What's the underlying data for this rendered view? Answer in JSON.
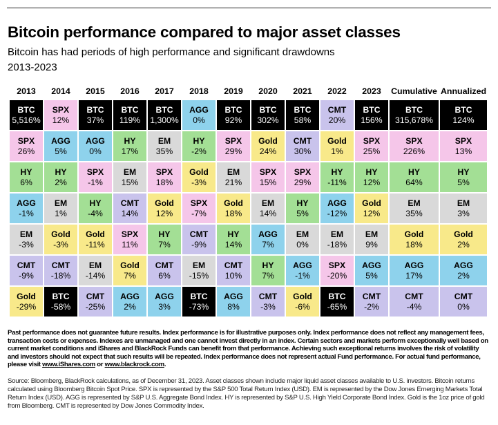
{
  "header": {
    "title": "Bitcoin performance compared to major asset classes",
    "subtitle": "Bitcoin has had periods of high performance and significant drawdowns",
    "period": "2013-2023"
  },
  "colors": {
    "BTC": "#000000",
    "SPX": "#f5c6e9",
    "AGG": "#8ed2ec",
    "HY": "#a3df95",
    "EM": "#d9d9d9",
    "Gold": "#f8e98a",
    "CMT": "#c9c3ec",
    "header_bg": "#ffffff"
  },
  "chart_data": {
    "type": "table",
    "title": "Bitcoin performance compared to major asset classes",
    "subtitle": "Bitcoin has had periods of high performance and significant drawdowns",
    "period": "2013-2023",
    "columns": [
      "2013",
      "2014",
      "2015",
      "2016",
      "2017",
      "2018",
      "2019",
      "2020",
      "2021",
      "2022",
      "2023",
      "Cumulative",
      "Annualized"
    ],
    "rows": [
      [
        {
          "asset": "BTC",
          "value": "5,516%"
        },
        {
          "asset": "SPX",
          "value": "12%"
        },
        {
          "asset": "BTC",
          "value": "37%"
        },
        {
          "asset": "BTC",
          "value": "119%"
        },
        {
          "asset": "BTC",
          "value": "1,300%"
        },
        {
          "asset": "AGG",
          "value": "0%"
        },
        {
          "asset": "BTC",
          "value": "92%"
        },
        {
          "asset": "BTC",
          "value": "302%"
        },
        {
          "asset": "BTC",
          "value": "58%"
        },
        {
          "asset": "CMT",
          "value": "20%"
        },
        {
          "asset": "BTC",
          "value": "156%"
        },
        {
          "asset": "BTC",
          "value": "315,678%"
        },
        {
          "asset": "BTC",
          "value": "124%"
        }
      ],
      [
        {
          "asset": "SPX",
          "value": "26%"
        },
        {
          "asset": "AGG",
          "value": "5%"
        },
        {
          "asset": "AGG",
          "value": "0%"
        },
        {
          "asset": "HY",
          "value": "17%"
        },
        {
          "asset": "EM",
          "value": "35%"
        },
        {
          "asset": "HY",
          "value": "-2%"
        },
        {
          "asset": "SPX",
          "value": "29%"
        },
        {
          "asset": "Gold",
          "value": "24%"
        },
        {
          "asset": "CMT",
          "value": "30%"
        },
        {
          "asset": "Gold",
          "value": "1%"
        },
        {
          "asset": "SPX",
          "value": "25%"
        },
        {
          "asset": "SPX",
          "value": "226%"
        },
        {
          "asset": "SPX",
          "value": "13%"
        }
      ],
      [
        {
          "asset": "HY",
          "value": "6%"
        },
        {
          "asset": "HY",
          "value": "2%"
        },
        {
          "asset": "SPX",
          "value": "-1%"
        },
        {
          "asset": "EM",
          "value": "15%"
        },
        {
          "asset": "SPX",
          "value": "18%"
        },
        {
          "asset": "Gold",
          "value": "-3%"
        },
        {
          "asset": "EM",
          "value": "21%"
        },
        {
          "asset": "SPX",
          "value": "15%"
        },
        {
          "asset": "SPX",
          "value": "29%"
        },
        {
          "asset": "HY",
          "value": "-11%"
        },
        {
          "asset": "HY",
          "value": "12%"
        },
        {
          "asset": "HY",
          "value": "64%"
        },
        {
          "asset": "HY",
          "value": "5%"
        }
      ],
      [
        {
          "asset": "AGG",
          "value": "-1%"
        },
        {
          "asset": "EM",
          "value": "1%"
        },
        {
          "asset": "HY",
          "value": "-4%"
        },
        {
          "asset": "CMT",
          "value": "14%"
        },
        {
          "asset": "Gold",
          "value": "12%"
        },
        {
          "asset": "SPX",
          "value": "-7%"
        },
        {
          "asset": "Gold",
          "value": "18%"
        },
        {
          "asset": "EM",
          "value": "14%"
        },
        {
          "asset": "HY",
          "value": "5%"
        },
        {
          "asset": "AGG",
          "value": "-12%"
        },
        {
          "asset": "Gold",
          "value": "12%"
        },
        {
          "asset": "EM",
          "value": "35%"
        },
        {
          "asset": "EM",
          "value": "3%"
        }
      ],
      [
        {
          "asset": "EM",
          "value": "-3%"
        },
        {
          "asset": "Gold",
          "value": "-3%"
        },
        {
          "asset": "Gold",
          "value": "-11%"
        },
        {
          "asset": "SPX",
          "value": "11%"
        },
        {
          "asset": "HY",
          "value": "7%"
        },
        {
          "asset": "CMT",
          "value": "-9%"
        },
        {
          "asset": "HY",
          "value": "14%"
        },
        {
          "asset": "AGG",
          "value": "7%"
        },
        {
          "asset": "EM",
          "value": "0%"
        },
        {
          "asset": "EM",
          "value": "-18%"
        },
        {
          "asset": "EM",
          "value": "9%"
        },
        {
          "asset": "Gold",
          "value": "18%"
        },
        {
          "asset": "Gold",
          "value": "2%"
        }
      ],
      [
        {
          "asset": "CMT",
          "value": "-9%"
        },
        {
          "asset": "CMT",
          "value": "-18%"
        },
        {
          "asset": "EM",
          "value": "-14%"
        },
        {
          "asset": "Gold",
          "value": "7%"
        },
        {
          "asset": "CMT",
          "value": "6%"
        },
        {
          "asset": "EM",
          "value": "-15%"
        },
        {
          "asset": "CMT",
          "value": "10%"
        },
        {
          "asset": "HY",
          "value": "7%"
        },
        {
          "asset": "AGG",
          "value": "-1%"
        },
        {
          "asset": "SPX",
          "value": "-20%"
        },
        {
          "asset": "AGG",
          "value": "5%"
        },
        {
          "asset": "AGG",
          "value": "17%"
        },
        {
          "asset": "AGG",
          "value": "2%"
        }
      ],
      [
        {
          "asset": "Gold",
          "value": "-29%"
        },
        {
          "asset": "BTC",
          "value": "-58%"
        },
        {
          "asset": "CMT",
          "value": "-25%"
        },
        {
          "asset": "AGG",
          "value": "2%"
        },
        {
          "asset": "AGG",
          "value": "3%"
        },
        {
          "asset": "BTC",
          "value": "-73%"
        },
        {
          "asset": "AGG",
          "value": "8%"
        },
        {
          "asset": "CMT",
          "value": "-3%"
        },
        {
          "asset": "Gold",
          "value": "-6%"
        },
        {
          "asset": "BTC",
          "value": "-65%"
        },
        {
          "asset": "CMT",
          "value": "-2%"
        },
        {
          "asset": "CMT",
          "value": "-4%"
        },
        {
          "asset": "CMT",
          "value": "0%"
        }
      ]
    ]
  },
  "footer": {
    "disclaimer": "Past performance does not guarantee future results. Index performance is for illustrative purposes only.  Index performance does not reflect any management fees, transaction costs or expenses. Indexes are unmanaged and one cannot invest directly in an index. Certain sectors and markets perform exceptionally well based on current market conditions and iShares and BlackRock Funds can benefit from that performance. Achieving such exceptional returns involves the risk of volatility and investors should not expect that such results will be repeated. Index performance does not represent actual Fund performance. For actual fund performance, please visit",
    "link_ishares": "www.iShares.com",
    "link_or": "or",
    "link_blackrock": "www.blackrock.com",
    "link_end": ".",
    "source": "Source: Bloomberg, BlackRock calculations, as of December 31, 2023. Asset classes shown include major liquid asset classes available to U.S. investors. Bitcoin returns calculated using Bloomberg Bitcoin Spot Price. SPX is represented by the S&P 500 Total Return Index (USD). EM is represented by the Dow Jones Emerging Markets Total Return Index (USD). AGG is represented by S&P U.S. Aggregate Bond Index. HY is represented by S&P U.S. High Yield Corporate Bond Index. Gold is the 1oz price of gold from Bloomberg. CMT is represented by Dow Jones Commodity Index."
  }
}
